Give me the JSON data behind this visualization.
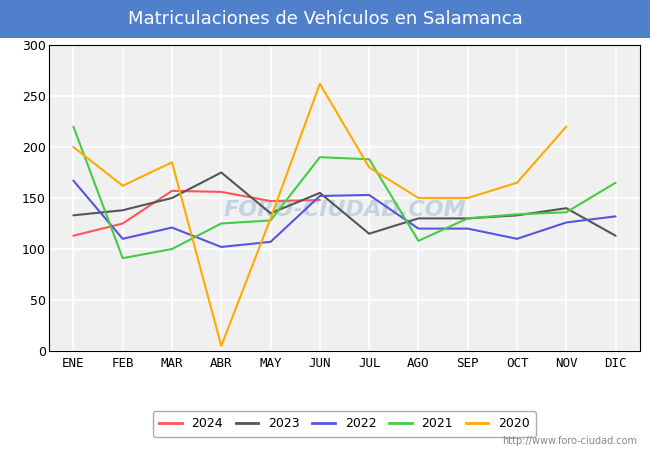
{
  "title": "Matriculaciones de Vehículos en Salamanca",
  "title_bg_color": "#5080cc",
  "title_text_color": "#ffffff",
  "fig_bg_color": "#ffffff",
  "plot_bg_color": "#f0f0f0",
  "months": [
    "ENE",
    "FEB",
    "MAR",
    "ABR",
    "MAY",
    "JUN",
    "JUL",
    "AGO",
    "SEP",
    "OCT",
    "NOV",
    "DIC"
  ],
  "series": {
    "2024": {
      "color": "#ff5555",
      "data": [
        113,
        125,
        157,
        156,
        147,
        148,
        null,
        null,
        null,
        null,
        null,
        null
      ]
    },
    "2023": {
      "color": "#555555",
      "data": [
        133,
        138,
        150,
        175,
        135,
        155,
        115,
        130,
        130,
        133,
        140,
        113
      ]
    },
    "2022": {
      "color": "#5555dd",
      "data": [
        167,
        110,
        121,
        102,
        107,
        152,
        153,
        120,
        120,
        110,
        126,
        132
      ]
    },
    "2021": {
      "color": "#44cc44",
      "data": [
        220,
        91,
        100,
        125,
        128,
        190,
        188,
        108,
        130,
        134,
        136,
        165
      ]
    },
    "2020": {
      "color": "#ffaa00",
      "data": [
        200,
        162,
        185,
        5,
        130,
        262,
        180,
        150,
        150,
        165,
        220,
        null
      ]
    }
  },
  "ylim": [
    0,
    300
  ],
  "yticks": [
    0,
    50,
    100,
    150,
    200,
    250,
    300
  ],
  "watermark": "FORO-CIUDAD.COM",
  "url": "http://www.foro-ciudad.com",
  "legend_order": [
    "2024",
    "2023",
    "2022",
    "2021",
    "2020"
  ],
  "title_fontsize": 13,
  "tick_fontsize": 9,
  "legend_fontsize": 9
}
